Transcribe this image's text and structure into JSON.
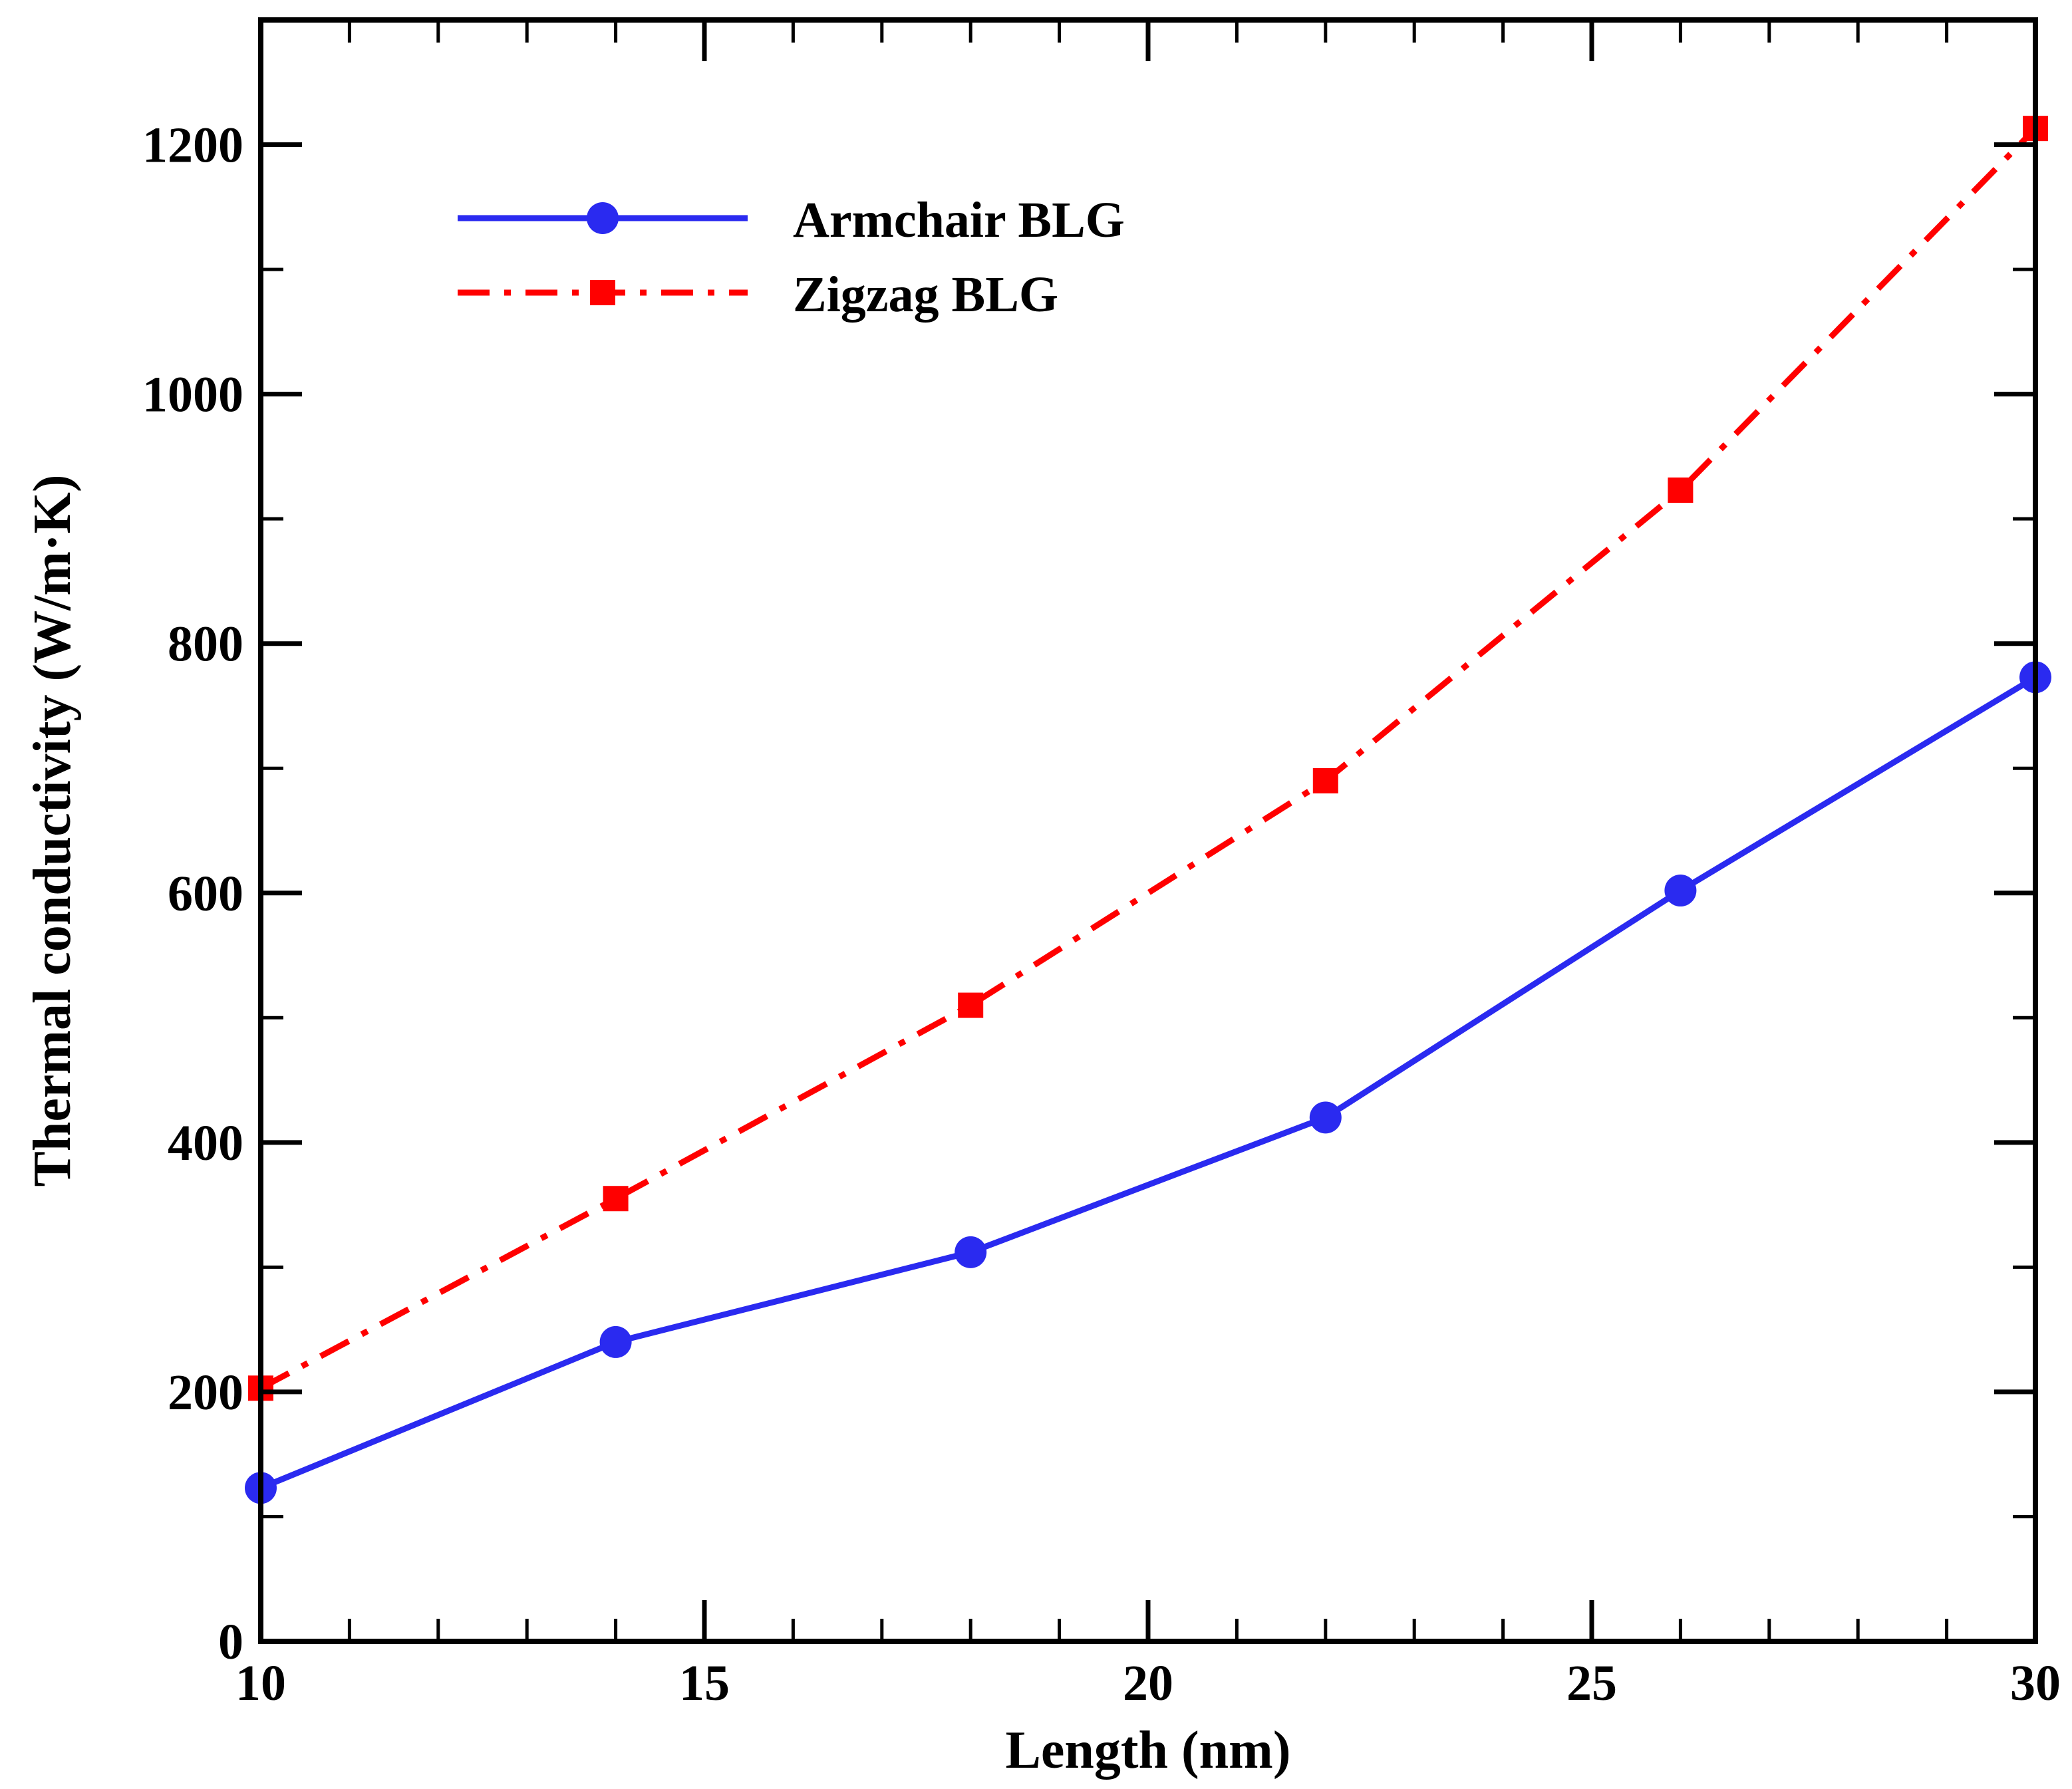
{
  "chart_data": {
    "type": "line",
    "title": "",
    "xlabel": "Length (nm)",
    "ylabel": "Thermal conductivity (W/m·K)",
    "xlim": [
      10,
      30
    ],
    "ylim": [
      0,
      1300
    ],
    "x_major_ticks": [
      10,
      15,
      20,
      25,
      30
    ],
    "x_tick_labels": [
      "10",
      "15",
      "20",
      "25",
      "30"
    ],
    "x_minor_step": 1,
    "y_major_ticks": [
      0,
      200,
      400,
      600,
      800,
      1000,
      1200
    ],
    "y_tick_labels": [
      "0",
      "200",
      "400",
      "600",
      "800",
      "1000",
      "1200"
    ],
    "y_minor_step": 100,
    "grid": false,
    "legend_position": "top-left",
    "series": [
      {
        "name": "Armchair BLG",
        "color": "#2a2af0",
        "line_style": "solid",
        "marker": "circle",
        "x": [
          10,
          14,
          18,
          22,
          26,
          30
        ],
        "y": [
          123,
          240,
          312,
          420,
          602,
          773
        ]
      },
      {
        "name": "Zigzag BLG",
        "color": "#ff0000",
        "line_style": "dash-dot",
        "marker": "square",
        "x": [
          10,
          14,
          18,
          22,
          26,
          30
        ],
        "y": [
          203,
          355,
          510,
          690,
          923,
          1213
        ]
      }
    ]
  }
}
